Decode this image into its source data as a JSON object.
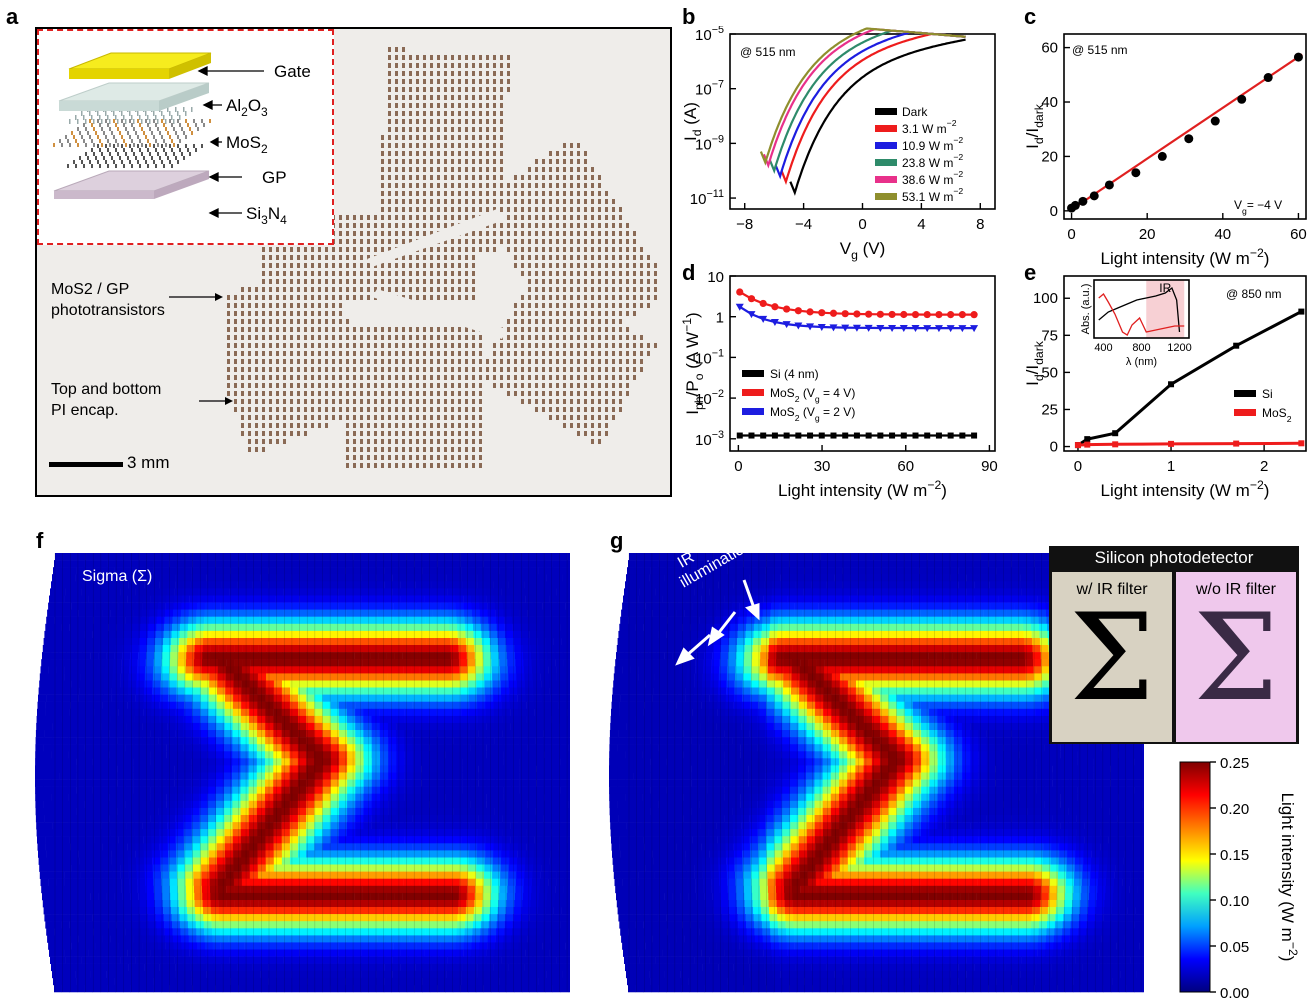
{
  "letters": {
    "a": "a",
    "b": "b",
    "c": "c",
    "d": "d",
    "e": "e",
    "f": "f",
    "g": "g"
  },
  "panel_a": {
    "layers": [
      "Gate",
      "Al2O3",
      "MoS2",
      "GP",
      "Si3N4"
    ],
    "annotation_1_line1": "MoS2 / GP",
    "annotation_1_line2": "phototransistors",
    "annotation_2_line1": "Top and bottom",
    "annotation_2_line2": "PI encap.",
    "scalebar": "3 mm",
    "colors": {
      "gate": "#f2e600",
      "dielectric": "#cfe0dc",
      "substrate": "#d9c9d8",
      "device": "#8a6a55"
    }
  },
  "chart_data": [
    {
      "id": "b",
      "type": "line",
      "annotation": "@ 515 nm",
      "xlabel": "Vg (V)",
      "ylabel": "Id (A)",
      "xlim": [
        -9,
        9
      ],
      "ylim_log10": [
        -11.4,
        -5
      ],
      "yscale": "log",
      "xticks": [
        -8,
        -4,
        0,
        4,
        8
      ],
      "yticks": [
        "10^-11",
        "10^-9",
        "10^-7",
        "10^-5"
      ],
      "legend_placement": "lower-right",
      "series": [
        {
          "name": "Dark",
          "color": "#000000",
          "vmin": -4.6,
          "logmin": -10.8
        },
        {
          "name": "3.1 W m-2",
          "color": "#ee1c1c",
          "vmin": -5.2,
          "logmin": -10.4
        },
        {
          "name": "10.9 W m-2",
          "color": "#1d1de0",
          "vmin": -5.6,
          "logmin": -10.2
        },
        {
          "name": "23.8 W m-2",
          "color": "#2e8b6a",
          "vmin": -6.0,
          "logmin": -10.0
        },
        {
          "name": "38.6 W m-2",
          "color": "#e8318a",
          "vmin": -6.4,
          "logmin": -9.8
        },
        {
          "name": "53.1 W m-2",
          "color": "#8f8f2e",
          "vmin": -6.6,
          "logmin": -9.7
        }
      ]
    },
    {
      "id": "c",
      "type": "scatter",
      "annotation": "@ 515 nm",
      "annotation2": "Vg= −4 V",
      "xlabel": "Light intensity (W m−2)",
      "ylabel": "Id/Idark",
      "xlim": [
        -2,
        62
      ],
      "ylim": [
        -3,
        65
      ],
      "xticks": [
        0,
        20,
        40,
        60
      ],
      "yticks": [
        0,
        20,
        40,
        60
      ],
      "points": [
        [
          0,
          1
        ],
        [
          1,
          2
        ],
        [
          3,
          3.5
        ],
        [
          6,
          5.5
        ],
        [
          10,
          9.5
        ],
        [
          17,
          14
        ],
        [
          24,
          20
        ],
        [
          31,
          26.5
        ],
        [
          38,
          33
        ],
        [
          45,
          41
        ],
        [
          52,
          49
        ],
        [
          60,
          56.5
        ]
      ],
      "fit": [
        [
          0,
          0.5
        ],
        [
          61,
          57.5
        ]
      ],
      "fit_color": "#e02020"
    },
    {
      "id": "d",
      "type": "line",
      "xlabel": "Light intensity (W m−2)",
      "ylabel": "Iph/Po (A W−1)",
      "xlim": [
        -3,
        92
      ],
      "ylim_log10": [
        -3.3,
        1
      ],
      "xticks": [
        0,
        30,
        60,
        90
      ],
      "yticks": [
        "10^-3",
        "10^-2",
        "10^-1",
        "1",
        "10"
      ],
      "legend_placement": "center",
      "series": [
        {
          "name": "Si (4 nm)",
          "color": "#000000",
          "marker": "square"
        },
        {
          "name": "MoS2 (Vg = 4 V)",
          "color": "#ee1c1c",
          "marker": "circle"
        },
        {
          "name": "MoS2 (Vg = 2 V)",
          "color": "#1d1de0",
          "marker": "triangle-down"
        }
      ]
    },
    {
      "id": "e",
      "type": "line",
      "annotation": "@ 850 nm",
      "xlabel": "Light intensity (W m−2)",
      "ylabel": "Id/Idark",
      "xlim": [
        -0.15,
        2.45
      ],
      "ylim": [
        -3,
        115
      ],
      "xticks": [
        0,
        1,
        2
      ],
      "yticks": [
        0,
        25,
        50,
        75,
        100
      ],
      "legend_placement": "lower-right",
      "series": [
        {
          "name": "Si",
          "color": "#000000",
          "x": [
            0,
            0.1,
            0.4,
            1.0,
            1.7,
            2.4
          ],
          "y": [
            1,
            5,
            9,
            42,
            68,
            91
          ]
        },
        {
          "name": "MoS2",
          "color": "#ee1c1c",
          "x": [
            0,
            0.1,
            0.4,
            1.0,
            1.7,
            2.4
          ],
          "y": [
            1,
            1.3,
            1.5,
            1.8,
            2.0,
            2.2
          ]
        }
      ],
      "inset": {
        "xlabel": "λ (nm)",
        "ylabel": "Abs. (a.u.)",
        "xticks": [
          400,
          800,
          1200
        ],
        "ir_label": "IR",
        "ir_range": [
          850,
          1250
        ]
      }
    }
  ],
  "panel_f": {
    "label": "Sigma (Σ)"
  },
  "panel_g": {
    "ir_label_1": "IR",
    "ir_label_2": "illumination",
    "inset_title": "Silicon photodetector",
    "inset_left": "w/ IR filter",
    "inset_right": "w/o IR filter",
    "symbol": "Σ"
  },
  "colorbar": {
    "label": "Light intensity (W m−2)",
    "ticks": [
      "0.25",
      "0.20",
      "0.15",
      "0.10",
      "0.05",
      "0.00"
    ],
    "colors": [
      "#00007f",
      "#0000ff",
      "#00a0ff",
      "#40ffc0",
      "#ffff00",
      "#ff8000",
      "#ff0000",
      "#7f0000"
    ]
  }
}
